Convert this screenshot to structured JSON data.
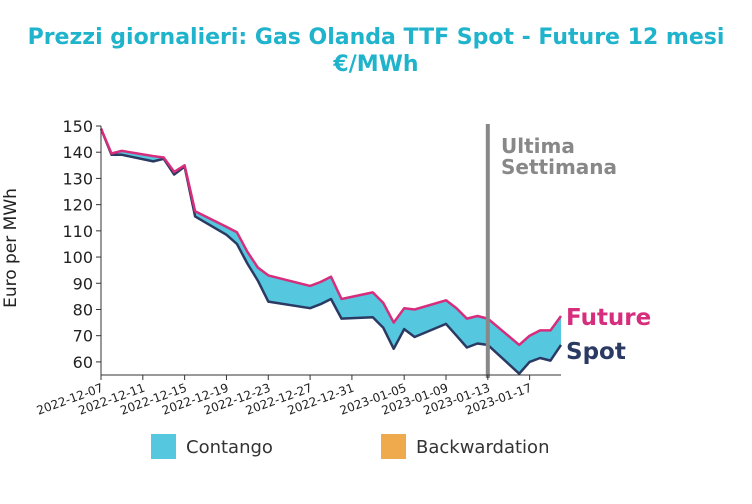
{
  "chart_data": {
    "type": "area",
    "title_line1": "Prezzi giornalieri: Gas Olanda TTF Spot - Future 12 mesi",
    "title_line2": "€/MWh",
    "ylabel": "Euro per MWh",
    "xlabel": "",
    "ylim": [
      55,
      150
    ],
    "yticks": [
      60,
      70,
      80,
      90,
      100,
      110,
      120,
      130,
      140,
      150
    ],
    "xlim": [
      "2022-12-07",
      "2023-01-20"
    ],
    "xticks": [
      "2022-12-07",
      "2022-12-11",
      "2022-12-15",
      "2022-12-19",
      "2022-12-23",
      "2022-12-27",
      "2022-12-31",
      "2023-01-05",
      "2023-01-09",
      "2023-01-13",
      "2023-01-17"
    ],
    "grid": false,
    "x": [
      "2022-12-07",
      "2022-12-08",
      "2022-12-09",
      "2022-12-12",
      "2022-12-13",
      "2022-12-14",
      "2022-12-15",
      "2022-12-16",
      "2022-12-19",
      "2022-12-20",
      "2022-12-21",
      "2022-12-22",
      "2022-12-23",
      "2022-12-27",
      "2022-12-28",
      "2022-12-29",
      "2022-12-30",
      "2023-01-02",
      "2023-01-03",
      "2023-01-04",
      "2023-01-05",
      "2023-01-06",
      "2023-01-09",
      "2023-01-10",
      "2023-01-11",
      "2023-01-12",
      "2023-01-13",
      "2023-01-16",
      "2023-01-17",
      "2023-01-18",
      "2023-01-19",
      "2023-01-20"
    ],
    "series": [
      {
        "name": "Spot",
        "color": "#2b3a63",
        "values": [
          149,
          139,
          139,
          136.5,
          137.5,
          131.5,
          134.5,
          115.5,
          108.5,
          105,
          97.5,
          91,
          83,
          80.5,
          82,
          84,
          76.5,
          77,
          73,
          65,
          72.5,
          69.5,
          74.5,
          70,
          65.5,
          67,
          66.5,
          55.5,
          60,
          61.5,
          60.5,
          66.5
        ]
      },
      {
        "name": "Future",
        "color": "#d62e7c",
        "values": [
          149,
          139.5,
          140.5,
          138.5,
          138,
          132.5,
          135,
          117.5,
          111.5,
          109.5,
          102,
          96,
          93,
          89,
          90.5,
          92.5,
          84,
          86.5,
          82.5,
          75,
          80.5,
          80,
          83.5,
          80.5,
          76.5,
          77.5,
          76.5,
          66.5,
          70,
          72,
          72,
          77.5
        ]
      }
    ],
    "fill_colors": {
      "contango": "#55c7df",
      "backwardation": "#eeaa4d"
    },
    "legend": {
      "position": "bottom",
      "items": [
        "Contango",
        "Backwardation"
      ]
    },
    "annotation": {
      "line1": "Ultima",
      "line2": "Settimana",
      "date": "2023-01-13",
      "color": "#888888"
    },
    "end_labels": {
      "future": "Future",
      "spot": "Spot"
    }
  }
}
